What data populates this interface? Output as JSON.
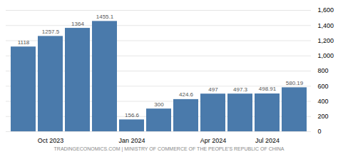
{
  "chart_data": {
    "type": "bar",
    "categories": [
      null,
      "Oct 2023",
      null,
      null,
      "Jan 2024",
      null,
      null,
      "Apr 2024",
      null,
      "Jul 2024",
      null
    ],
    "values": [
      1118,
      1257.5,
      1364,
      1455.1,
      156.6,
      300,
      424.6,
      497,
      497.3,
      498.91,
      580.19
    ],
    "value_labels": [
      "1118",
      "1257.5",
      "1364",
      "1455.1",
      "156.6",
      "300",
      "424.6",
      "497",
      "497.3",
      "498.91",
      "580.19"
    ],
    "color": "#4a7aab",
    "ylim": [
      0,
      1600
    ],
    "yticks": [
      0,
      200,
      400,
      600,
      800,
      1000,
      1200,
      1400,
      1600
    ],
    "grid": true,
    "data_labels": true,
    "caption": "TRADINGECONOMICS.COM | MINISTRY OF COMMERCE OF THE PEOPLE'S REPUBLIC OF CHINA"
  }
}
